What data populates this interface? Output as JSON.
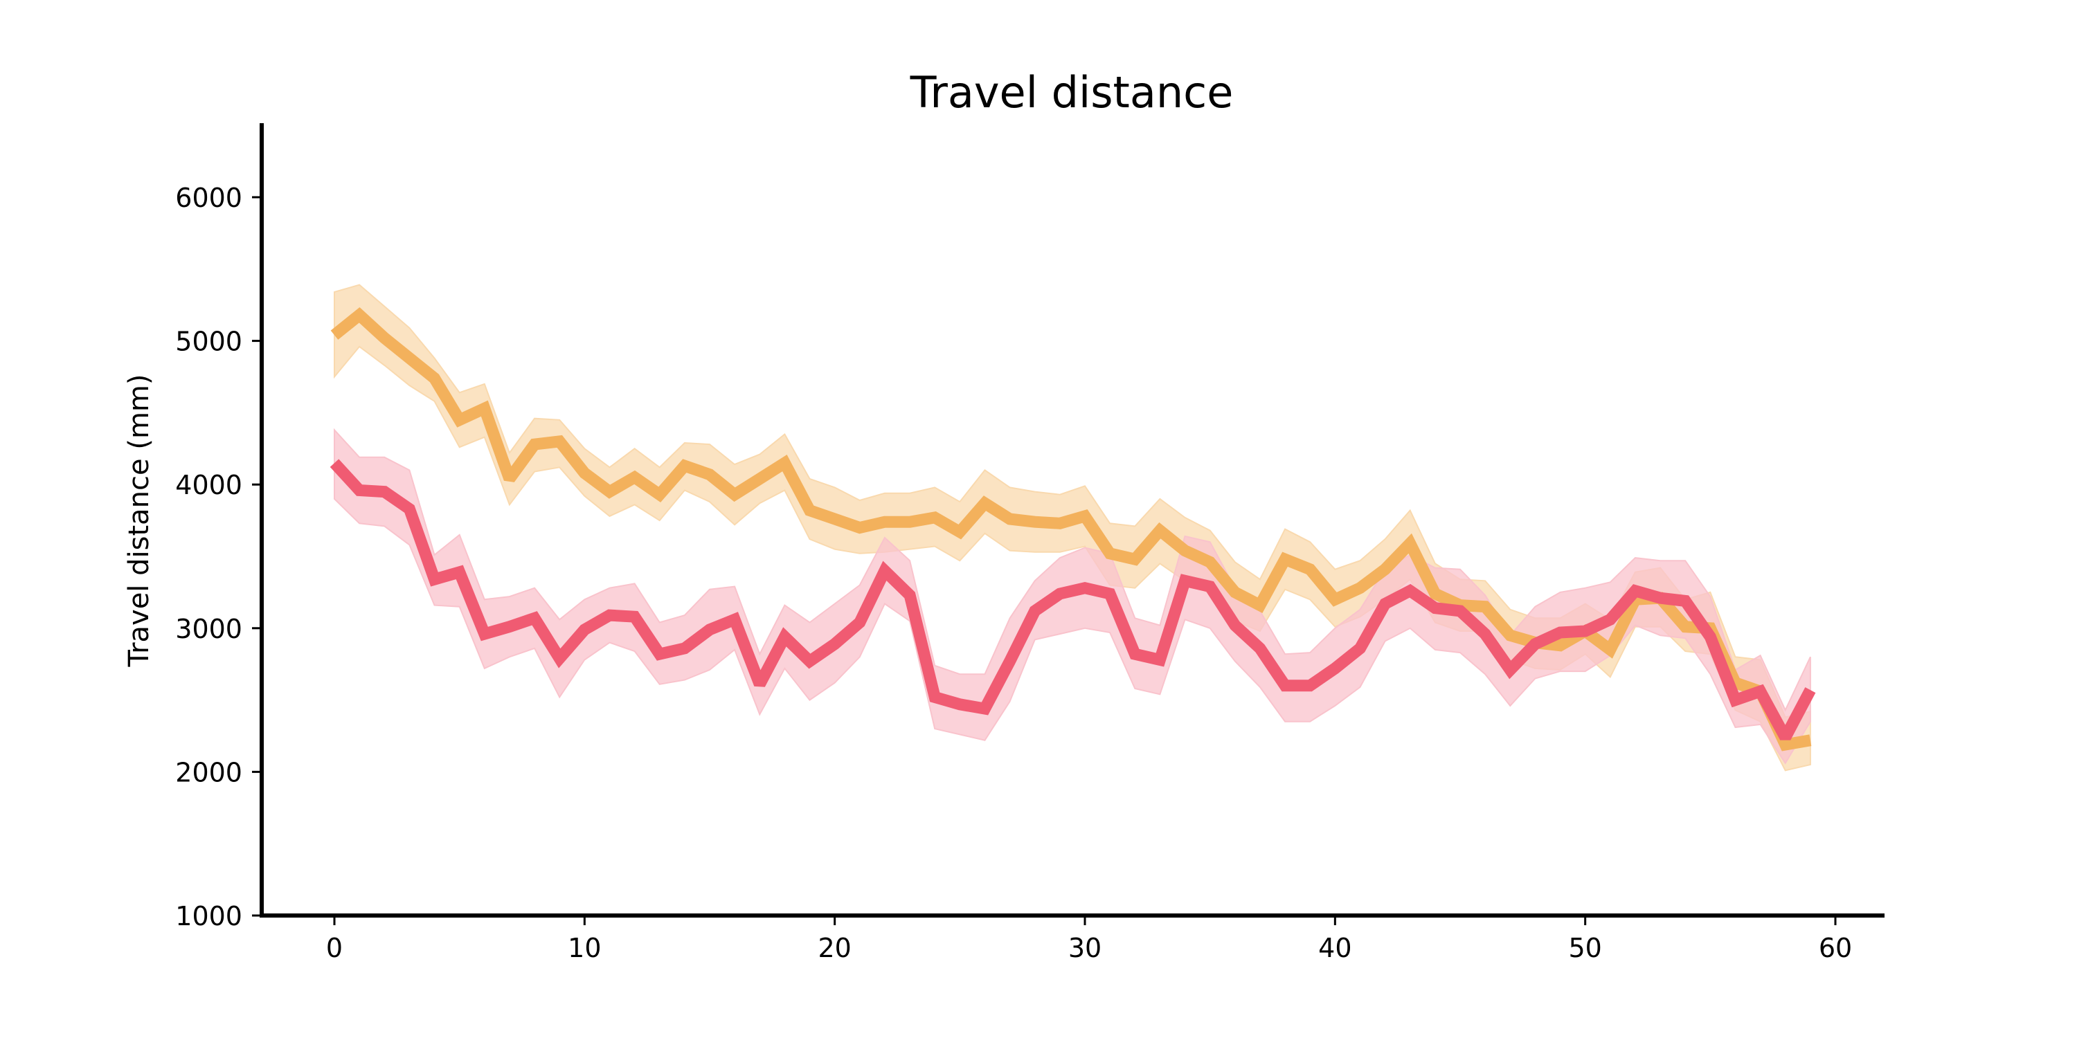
{
  "chart_data": {
    "type": "line",
    "title": "Travel distance",
    "xlabel": "",
    "ylabel": "Travel distance (mm)",
    "xlim": [
      -3,
      62
    ],
    "ylim": [
      1000,
      6500
    ],
    "xticks": [
      0,
      10,
      20,
      30,
      40,
      50,
      60
    ],
    "yticks": [
      1000,
      2000,
      3000,
      4000,
      5000,
      6000
    ],
    "grid": false,
    "legend": "none",
    "x": [
      0,
      1,
      2,
      3,
      4,
      5,
      6,
      7,
      8,
      9,
      10,
      11,
      12,
      13,
      14,
      15,
      16,
      17,
      18,
      19,
      20,
      21,
      22,
      23,
      24,
      25,
      26,
      27,
      28,
      29,
      30,
      31,
      32,
      33,
      34,
      35,
      36,
      37,
      38,
      39,
      40,
      41,
      42,
      43,
      44,
      45,
      46,
      47,
      48,
      49,
      50,
      51,
      52,
      53,
      54,
      55,
      56,
      57,
      58,
      59
    ],
    "series": [
      {
        "color": "#F3B15C",
        "band_color": "#F9D9AE",
        "values": [
          5040,
          5180,
          5020,
          4880,
          4740,
          4450,
          4530,
          4040,
          4280,
          4300,
          4080,
          3950,
          4050,
          3930,
          4130,
          4070,
          3930,
          4040,
          4150,
          3820,
          3760,
          3700,
          3740,
          3740,
          3770,
          3670,
          3870,
          3760,
          3740,
          3730,
          3780,
          3520,
          3480,
          3680,
          3540,
          3460,
          3250,
          3160,
          3480,
          3410,
          3200,
          3280,
          3410,
          3590,
          3240,
          3160,
          3150,
          2950,
          2900,
          2880,
          2980,
          2850,
          3200,
          3210,
          3010,
          3000,
          2620,
          2560,
          2190,
          2220
        ],
        "lower": [
          4750,
          4960,
          4830,
          4690,
          4580,
          4260,
          4330,
          3860,
          4090,
          4120,
          3920,
          3780,
          3860,
          3750,
          3960,
          3880,
          3720,
          3870,
          3960,
          3620,
          3550,
          3520,
          3530,
          3550,
          3570,
          3470,
          3660,
          3540,
          3530,
          3530,
          3570,
          3300,
          3280,
          3450,
          3330,
          3240,
          3050,
          2980,
          3270,
          3200,
          3010,
          3080,
          3200,
          3340,
          3040,
          2980,
          2980,
          2780,
          2720,
          2710,
          2820,
          2660,
          3010,
          3010,
          2840,
          2820,
          2430,
          2350,
          2010,
          2050
        ],
        "upper": [
          5340,
          5390,
          5240,
          5090,
          4880,
          4640,
          4700,
          4220,
          4460,
          4450,
          4250,
          4120,
          4250,
          4120,
          4290,
          4280,
          4140,
          4210,
          4350,
          4040,
          3980,
          3890,
          3940,
          3940,
          3980,
          3880,
          4100,
          3980,
          3950,
          3930,
          3990,
          3730,
          3710,
          3900,
          3770,
          3680,
          3460,
          3340,
          3690,
          3600,
          3410,
          3470,
          3620,
          3820,
          3450,
          3340,
          3330,
          3130,
          3070,
          3070,
          3170,
          3060,
          3390,
          3420,
          3200,
          3250,
          2800,
          2780,
          2380,
          2420
        ]
      },
      {
        "color": "#F05B72",
        "band_color": "#F9C3CC",
        "values": [
          4150,
          3960,
          3950,
          3830,
          3340,
          3390,
          2960,
          3010,
          3070,
          2790,
          2990,
          3090,
          3080,
          2820,
          2860,
          2990,
          3060,
          2610,
          2940,
          2770,
          2890,
          3040,
          3400,
          3230,
          2520,
          2470,
          2440,
          2770,
          3120,
          3240,
          3280,
          3240,
          2820,
          2780,
          3330,
          3290,
          3020,
          2860,
          2600,
          2600,
          2720,
          2860,
          3170,
          3260,
          3140,
          3120,
          2960,
          2710,
          2890,
          2970,
          2980,
          3060,
          3260,
          3210,
          3190,
          2940,
          2500,
          2560,
          2240,
          2570
        ],
        "lower": [
          3900,
          3730,
          3710,
          3580,
          3160,
          3150,
          2720,
          2800,
          2860,
          2520,
          2780,
          2900,
          2840,
          2610,
          2640,
          2710,
          2850,
          2400,
          2720,
          2500,
          2620,
          2800,
          3170,
          3050,
          2300,
          2260,
          2220,
          2490,
          2920,
          2960,
          3000,
          2970,
          2580,
          2540,
          3060,
          3000,
          2770,
          2590,
          2350,
          2350,
          2460,
          2590,
          2910,
          3000,
          2850,
          2830,
          2680,
          2460,
          2650,
          2700,
          2700,
          2810,
          3020,
          2950,
          2930,
          2680,
          2310,
          2330,
          2060,
          2350
        ],
        "upper": [
          4380,
          4190,
          4190,
          4100,
          3510,
          3650,
          3200,
          3220,
          3280,
          3060,
          3200,
          3280,
          3310,
          3040,
          3090,
          3270,
          3290,
          2820,
          3160,
          3040,
          3170,
          3300,
          3630,
          3470,
          2740,
          2680,
          2680,
          3070,
          3330,
          3490,
          3560,
          3520,
          3070,
          3020,
          3640,
          3600,
          3280,
          3120,
          2820,
          2830,
          3000,
          3130,
          3410,
          3510,
          3420,
          3410,
          3230,
          2950,
          3150,
          3250,
          3280,
          3320,
          3490,
          3470,
          3470,
          3220,
          2710,
          2810,
          2430,
          2800
        ]
      }
    ]
  }
}
